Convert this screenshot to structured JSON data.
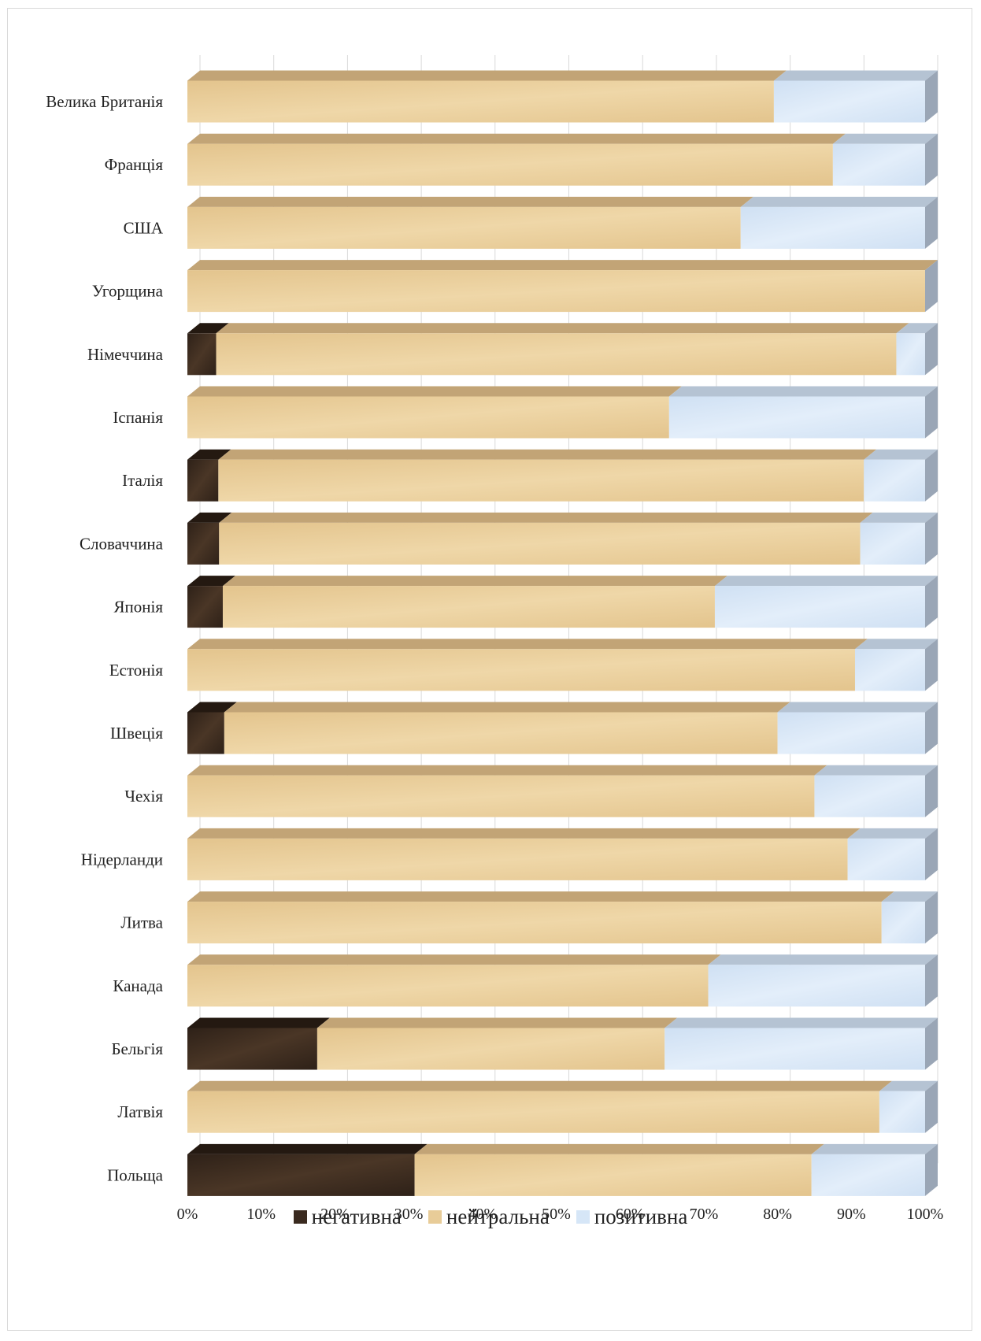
{
  "chart_data": {
    "type": "bar",
    "orientation": "horizontal",
    "stacked": "percent",
    "three_d": true,
    "categories": [
      "Велика Британія",
      "Франція",
      "США",
      "Угорщина",
      "Німеччина",
      "Іспанія",
      "Італія",
      "Словаччина",
      "Японія",
      "Естонія",
      "Швеція",
      "Чехія",
      "Нідерланди",
      "Литва",
      "Канада",
      "Бельгія",
      "Латвія",
      "Польща"
    ],
    "series": [
      {
        "name": "негативна",
        "color": "#3a2a1f",
        "values": [
          0,
          0,
          0,
          0,
          3.9,
          0,
          4.2,
          4.3,
          4.8,
          0,
          5.0,
          0,
          0,
          0,
          0,
          17.6,
          0,
          30.8
        ]
      },
      {
        "name": "нейтральна",
        "color": "#e8cc98",
        "values": [
          79.5,
          87.5,
          75.0,
          100,
          92.2,
          65.3,
          87.5,
          86.9,
          66.7,
          90.5,
          75.0,
          85.0,
          89.5,
          94.1,
          70.6,
          47.1,
          93.8,
          53.8
        ]
      },
      {
        "name": "позитивна",
        "color": "#d6e6f7",
        "values": [
          20.5,
          12.5,
          25.0,
          0,
          3.9,
          34.7,
          8.3,
          8.8,
          28.5,
          9.5,
          20.0,
          15.0,
          10.5,
          5.9,
          29.4,
          35.3,
          6.2,
          15.4
        ]
      }
    ],
    "x_ticks": [
      "0%",
      "10%",
      "20%",
      "30%",
      "40%",
      "50%",
      "60%",
      "70%",
      "80%",
      "90%",
      "100%"
    ],
    "xlim": [
      0,
      100
    ],
    "grid": "vertical",
    "legend": "bottom",
    "title": "",
    "xlabel": "",
    "ylabel": ""
  }
}
